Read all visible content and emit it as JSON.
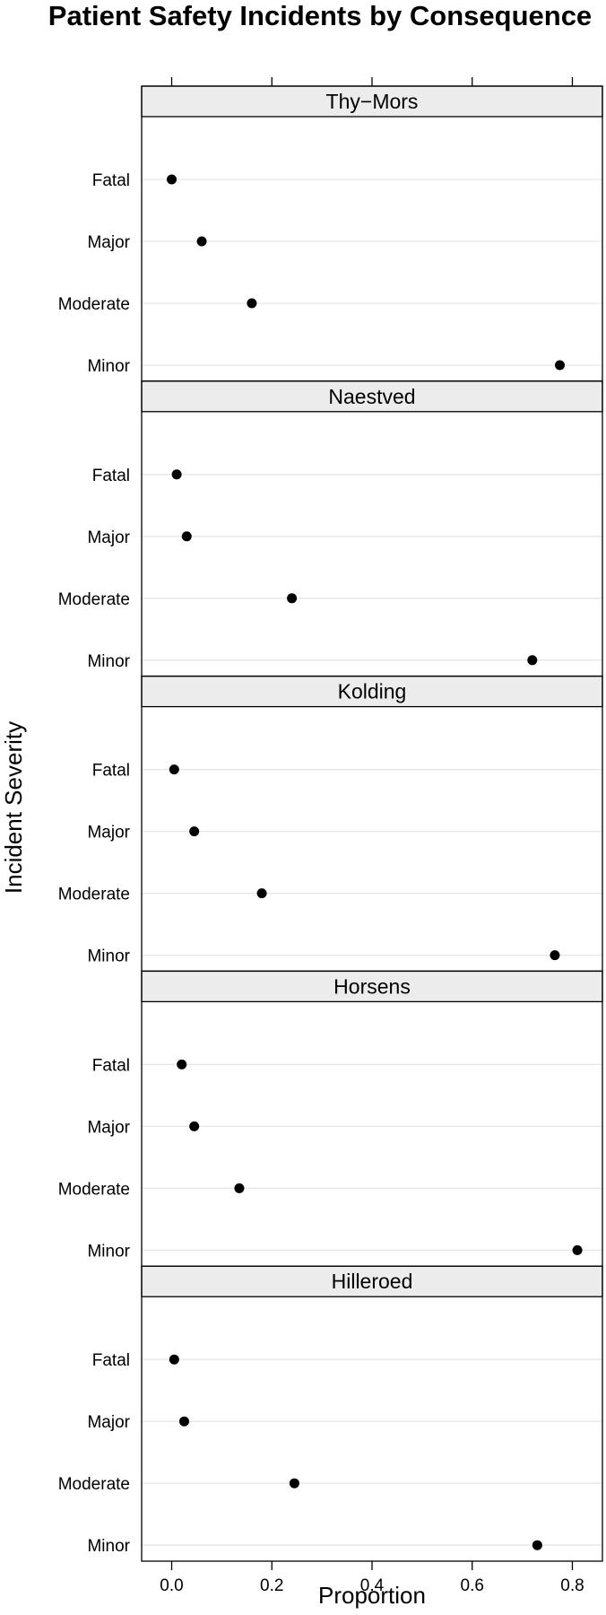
{
  "chart_data": {
    "type": "scatter",
    "subtype": "dotplot-trellis",
    "title": "Patient Safety Incidents by Consequence",
    "xlabel": "Proportion",
    "ylabel": "Incident Severity",
    "xlim": [
      -0.06,
      0.86
    ],
    "xticks": [
      0.0,
      0.2,
      0.4,
      0.6,
      0.8
    ],
    "xtick_labels": [
      "0.0",
      "0.2",
      "0.4",
      "0.6",
      "0.8"
    ],
    "categories": [
      "Fatal",
      "Major",
      "Moderate",
      "Minor"
    ],
    "grid": true,
    "colors": {
      "point": "#000000",
      "gridline": "#e6e6e6",
      "strip": "#ececec",
      "frame": "#000000"
    },
    "panels": [
      {
        "name": "Thy−Mors",
        "values": [
          0.0,
          0.06,
          0.16,
          0.775
        ]
      },
      {
        "name": "Naestved",
        "values": [
          0.01,
          0.03,
          0.24,
          0.72
        ]
      },
      {
        "name": "Kolding",
        "values": [
          0.005,
          0.045,
          0.18,
          0.765
        ]
      },
      {
        "name": "Horsens",
        "values": [
          0.02,
          0.045,
          0.135,
          0.81
        ]
      },
      {
        "name": "Hilleroed",
        "values": [
          0.005,
          0.025,
          0.245,
          0.73
        ]
      }
    ]
  }
}
